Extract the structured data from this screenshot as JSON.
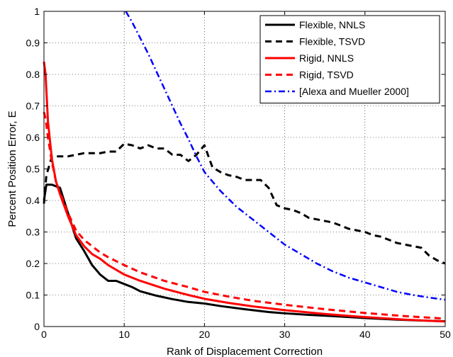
{
  "chart_data": {
    "type": "line",
    "title": "",
    "xlabel": "Rank of Displacement Correction",
    "ylabel": "Percent Position Error, E",
    "xlim": [
      0,
      50
    ],
    "ylim": [
      0,
      1
    ],
    "xticks": [
      0,
      10,
      20,
      30,
      40,
      50
    ],
    "yticks": [
      0,
      0.1,
      0.2,
      0.3,
      0.4,
      0.5,
      0.6,
      0.7,
      0.8,
      0.9,
      1
    ],
    "grid": true,
    "legend_position": "top-right",
    "series": [
      {
        "name": "Flexible, NNLS",
        "color": "#000000",
        "dash": "solid",
        "x": [
          0,
          0.3,
          1,
          2,
          3,
          4,
          5,
          6,
          7,
          8,
          9,
          10,
          11,
          12,
          14,
          16,
          18,
          20,
          22,
          25,
          28,
          30,
          33,
          36,
          40,
          44,
          47,
          50
        ],
        "y": [
          0.4,
          0.45,
          0.45,
          0.44,
          0.36,
          0.28,
          0.24,
          0.195,
          0.165,
          0.145,
          0.145,
          0.135,
          0.125,
          0.112,
          0.098,
          0.087,
          0.078,
          0.073,
          0.065,
          0.055,
          0.046,
          0.042,
          0.037,
          0.033,
          0.027,
          0.022,
          0.019,
          0.017
        ]
      },
      {
        "name": "Flexible, TSVD",
        "color": "#000000",
        "dash": "dashed",
        "x": [
          0,
          0.3,
          1,
          2,
          3,
          4,
          5,
          6,
          7,
          8,
          9,
          10,
          11,
          12,
          13,
          14,
          15,
          16,
          17,
          18,
          19,
          20,
          21,
          22,
          23,
          24,
          25,
          26,
          27,
          28,
          29,
          30,
          31,
          32,
          33,
          34,
          35,
          36,
          37,
          38,
          39,
          40,
          41,
          42,
          43,
          44,
          45,
          46,
          47,
          48,
          49,
          50
        ],
        "y": [
          0.39,
          0.48,
          0.54,
          0.54,
          0.54,
          0.545,
          0.55,
          0.55,
          0.55,
          0.555,
          0.555,
          0.58,
          0.575,
          0.565,
          0.575,
          0.565,
          0.565,
          0.545,
          0.545,
          0.525,
          0.545,
          0.575,
          0.505,
          0.49,
          0.48,
          0.475,
          0.465,
          0.465,
          0.465,
          0.44,
          0.385,
          0.375,
          0.37,
          0.36,
          0.345,
          0.34,
          0.335,
          0.33,
          0.32,
          0.31,
          0.305,
          0.3,
          0.29,
          0.285,
          0.275,
          0.265,
          0.26,
          0.255,
          0.25,
          0.225,
          0.21,
          0.2
        ]
      },
      {
        "name": "Rigid, NNLS",
        "color": "#ff0000",
        "dash": "solid",
        "x": [
          0,
          0.2,
          0.5,
          1,
          1.5,
          2,
          3,
          4,
          5,
          6,
          7,
          8,
          10,
          12,
          15,
          18,
          20,
          23,
          26,
          30,
          35,
          40,
          45,
          50
        ],
        "y": [
          0.84,
          0.8,
          0.65,
          0.53,
          0.46,
          0.42,
          0.35,
          0.29,
          0.255,
          0.23,
          0.215,
          0.195,
          0.165,
          0.145,
          0.12,
          0.1,
          0.088,
          0.075,
          0.064,
          0.052,
          0.04,
          0.03,
          0.022,
          0.016
        ]
      },
      {
        "name": "Rigid, TSVD",
        "color": "#ff0000",
        "dash": "dashed",
        "x": [
          0,
          0.2,
          0.5,
          1,
          1.5,
          2,
          3,
          4,
          5,
          6,
          7,
          8,
          10,
          12,
          15,
          18,
          20,
          23,
          26,
          30,
          35,
          40,
          45,
          50
        ],
        "y": [
          0.68,
          0.66,
          0.6,
          0.52,
          0.46,
          0.425,
          0.36,
          0.305,
          0.275,
          0.255,
          0.235,
          0.22,
          0.195,
          0.172,
          0.145,
          0.125,
          0.11,
          0.095,
          0.082,
          0.069,
          0.055,
          0.043,
          0.033,
          0.025
        ]
      },
      {
        "name": "[Alexa and Mueller 2000]",
        "color": "#0000ff",
        "dash": "dashdot",
        "x": [
          10.2,
          11,
          12,
          13,
          14,
          15,
          16,
          17,
          18,
          19,
          20,
          22,
          24,
          26,
          28,
          30,
          32,
          34,
          36,
          38,
          40,
          42,
          44,
          46,
          48,
          50
        ],
        "y": [
          1.0,
          0.965,
          0.915,
          0.865,
          0.81,
          0.755,
          0.7,
          0.645,
          0.595,
          0.54,
          0.49,
          0.43,
          0.38,
          0.34,
          0.3,
          0.26,
          0.23,
          0.2,
          0.175,
          0.155,
          0.14,
          0.125,
          0.11,
          0.1,
          0.092,
          0.085
        ]
      }
    ]
  }
}
